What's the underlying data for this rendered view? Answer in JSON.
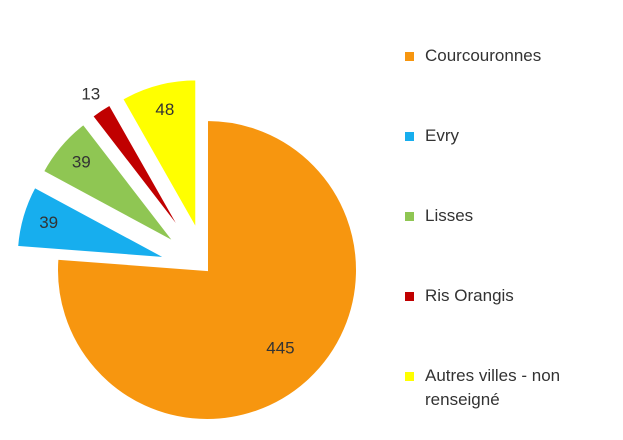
{
  "chart_data": {
    "type": "pie",
    "categories": [
      "Courcouronnes",
      "Evry",
      "Lisses",
      "Ris Orangis",
      "Autres villes - non renseigné"
    ],
    "values": [
      445,
      39,
      39,
      13,
      48
    ],
    "colors": [
      "#f7960f",
      "#17aeee",
      "#8fc653",
      "#c00000",
      "#ffff00"
    ],
    "legend": "right"
  }
}
